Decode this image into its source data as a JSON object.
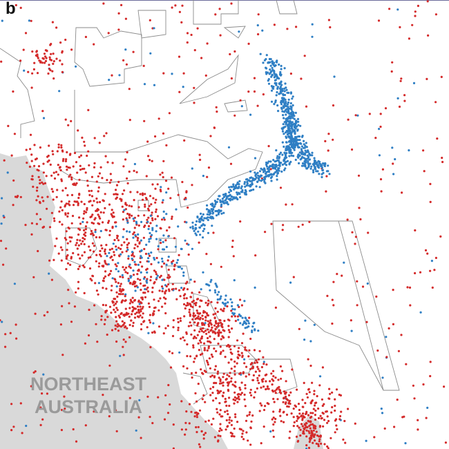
{
  "panel_label": "b",
  "map": {
    "region_label": [
      "NORTHEAST",
      "AUSTRALIA"
    ]
  }
}
